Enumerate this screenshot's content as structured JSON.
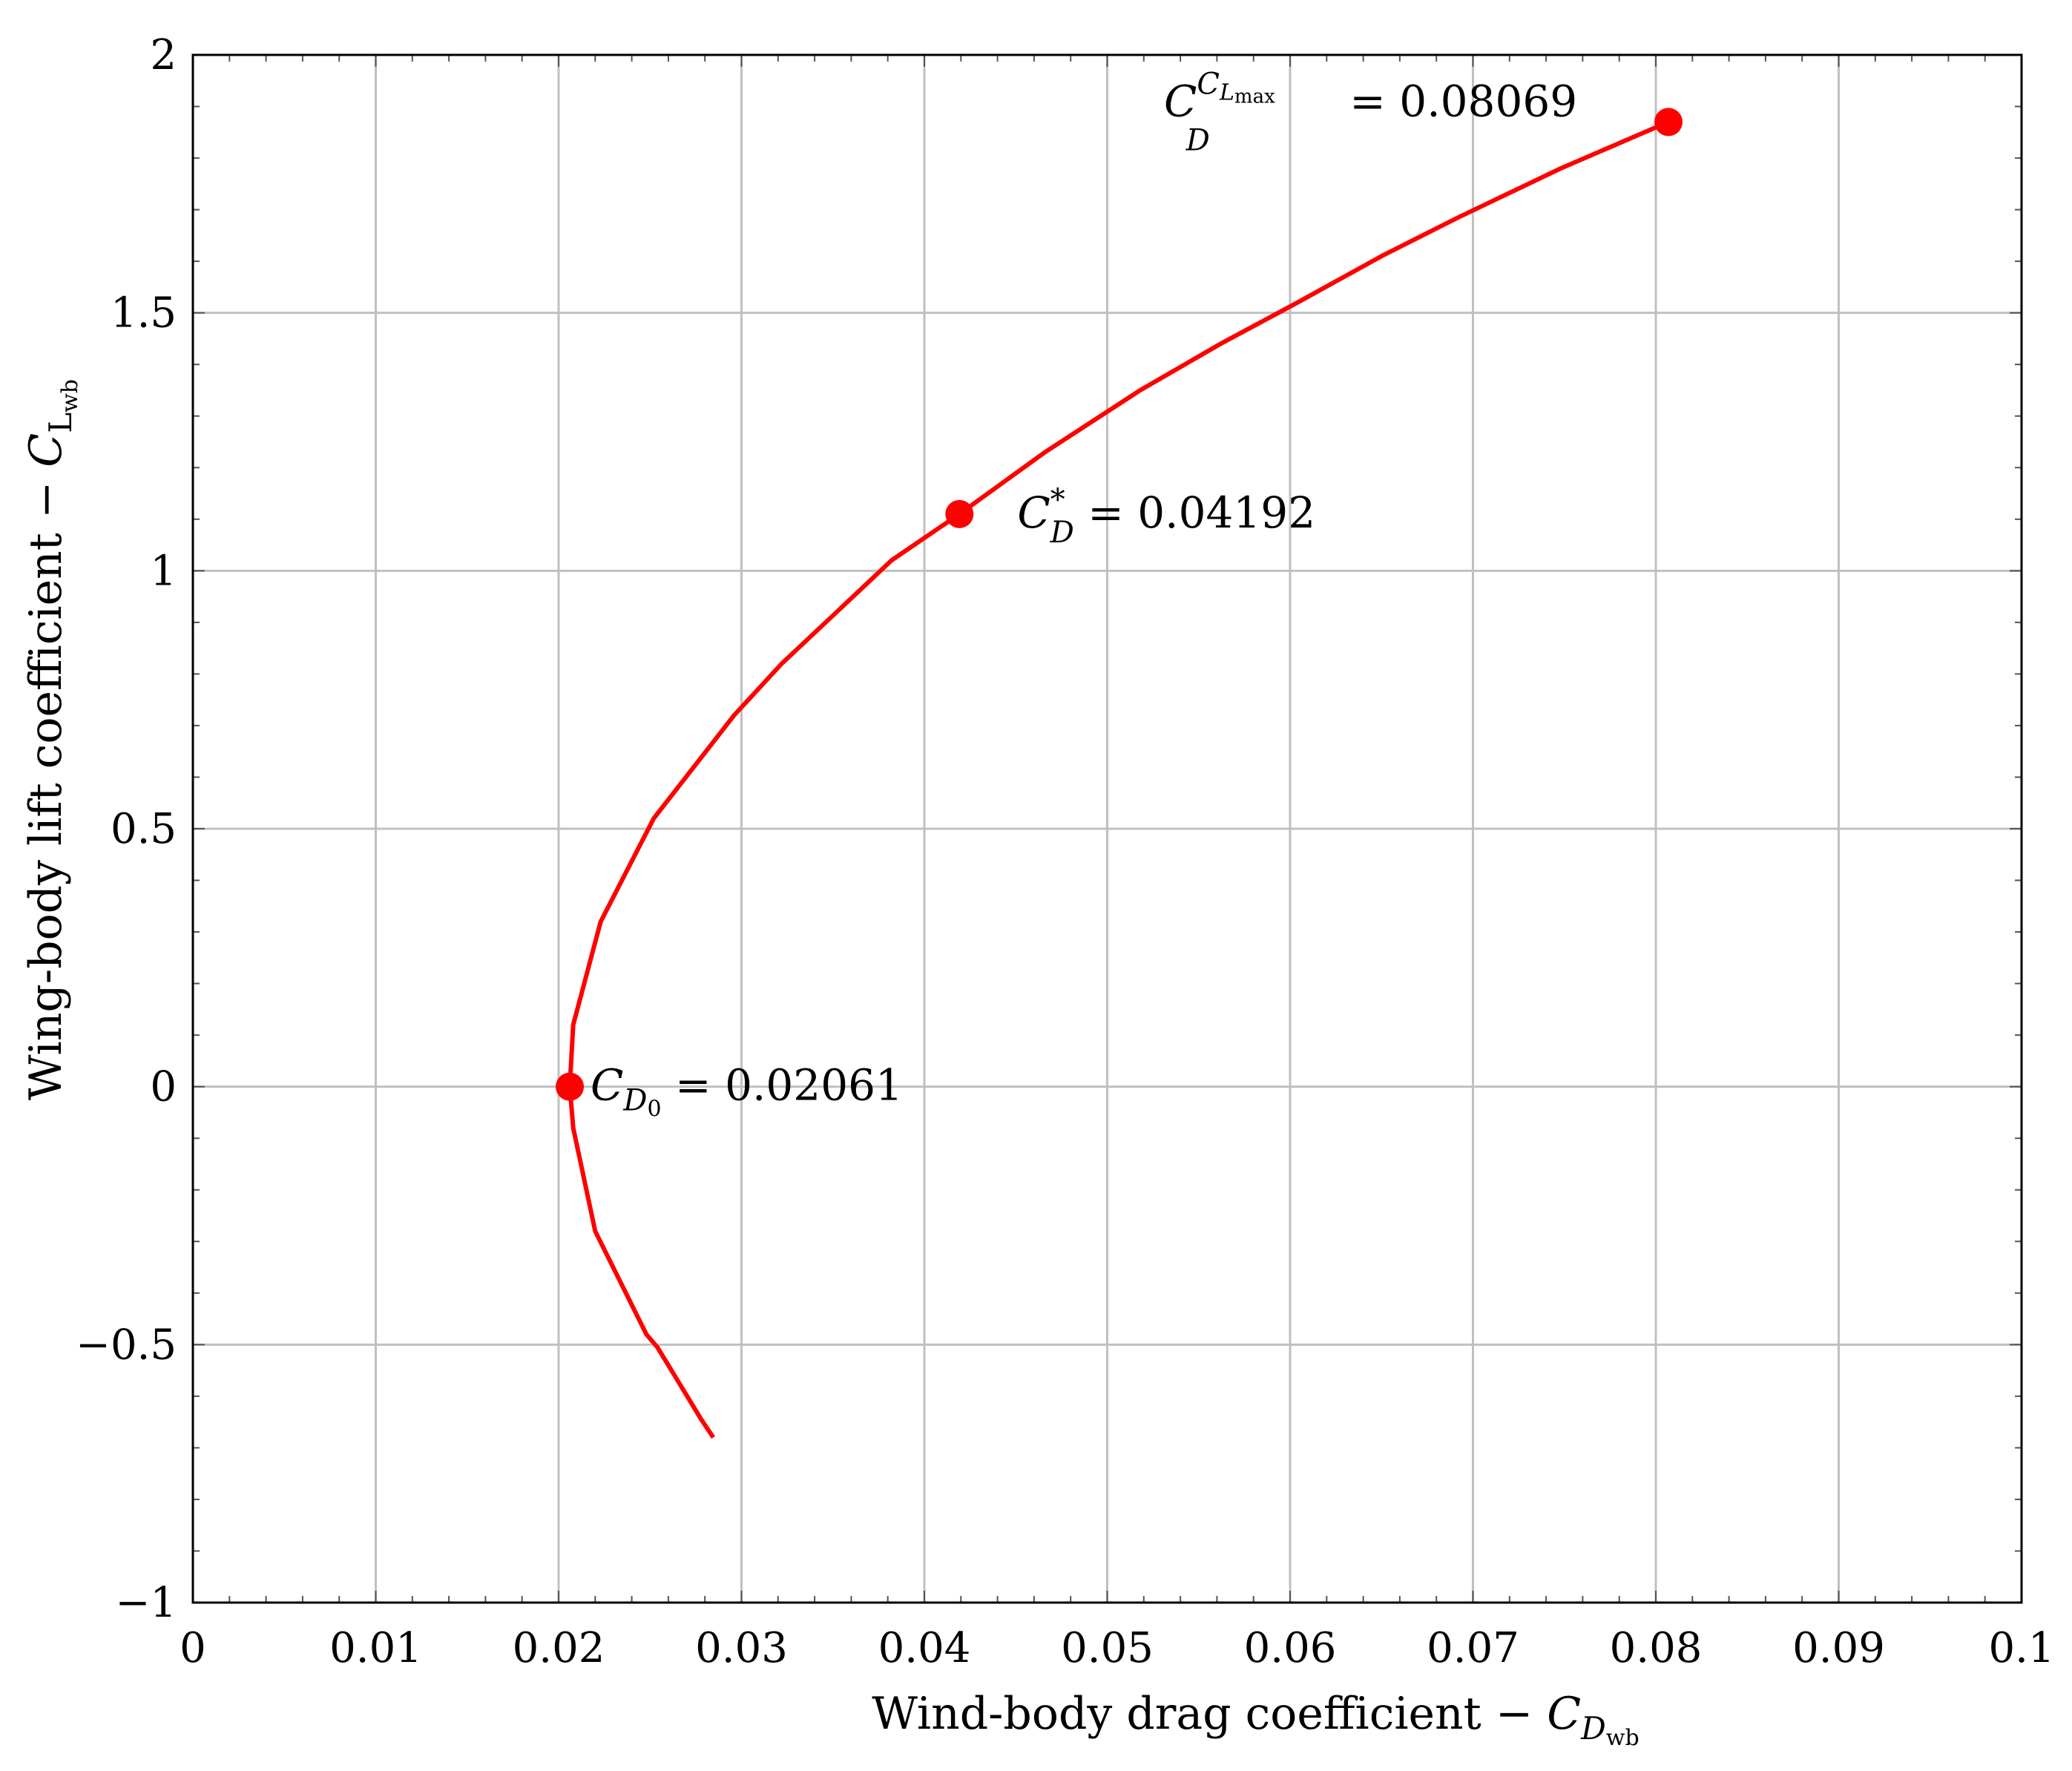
{
  "chart_data": {
    "type": "line",
    "xlabel_main": "Wind-body drag coefficient",
    "xlabel_symbol": "C",
    "xlabel_sub": "D",
    "xlabel_subsub": "wb",
    "ylabel_main": "Wing-body lift coefficient",
    "ylabel_symbol": "C",
    "ylabel_sub": "L",
    "ylabel_subsub": "wb",
    "xlim": [
      0,
      0.1
    ],
    "ylim": [
      -1,
      2
    ],
    "grid": true,
    "x_ticks": [
      0,
      0.01,
      0.02,
      0.03,
      0.04,
      0.05,
      0.06,
      0.07,
      0.08,
      0.09,
      0.1
    ],
    "x_tick_labels": [
      "0",
      "0.01",
      "0.02",
      "0.03",
      "0.04",
      "0.05",
      "0.06",
      "0.07",
      "0.08",
      "0.09",
      "0.1"
    ],
    "y_ticks": [
      -1,
      -0.5,
      0,
      0.5,
      1,
      1.5,
      2
    ],
    "y_tick_labels": [
      "−1",
      "−0.5",
      "0",
      "0.5",
      "1",
      "1.5",
      "2"
    ],
    "series": [
      {
        "color": "#ff0000",
        "x": [
          0.02846,
          0.0278,
          0.0272,
          0.0266,
          0.026,
          0.0254,
          0.0248,
          0.0234,
          0.022,
          0.0208,
          0.02061,
          0.0208,
          0.0223,
          0.0252,
          0.0296,
          0.0322,
          0.0352,
          0.0382,
          0.04192,
          0.0466,
          0.0518,
          0.0562,
          0.0604,
          0.065,
          0.0692,
          0.0748,
          0.08069
        ],
        "y": [
          -0.68,
          -0.645,
          -0.61,
          -0.575,
          -0.54,
          -0.505,
          -0.48,
          -0.38,
          -0.28,
          -0.08,
          0.0,
          0.12,
          0.32,
          0.52,
          0.72,
          0.82,
          0.92,
          1.02,
          1.11,
          1.23,
          1.35,
          1.44,
          1.52,
          1.61,
          1.685,
          1.78,
          1.87
        ]
      }
    ],
    "markers": [
      {
        "x": 0.02061,
        "y": 0.0,
        "label_sym": "C",
        "label_sub": "D",
        "label_subsub": "0",
        "label_rest": " = 0.02061"
      },
      {
        "x": 0.04192,
        "y": 1.11,
        "label_sym": "C",
        "label_sup": "*",
        "label_sub": "D",
        "label_rest": " = 0.04192"
      },
      {
        "x": 0.08069,
        "y": 1.87,
        "label_sym": "C",
        "label_sub": "D",
        "label_sup": "C",
        "label_supsub": "L",
        "label_supsubsub": "max",
        "label_rest": " = 0.08069"
      }
    ]
  }
}
